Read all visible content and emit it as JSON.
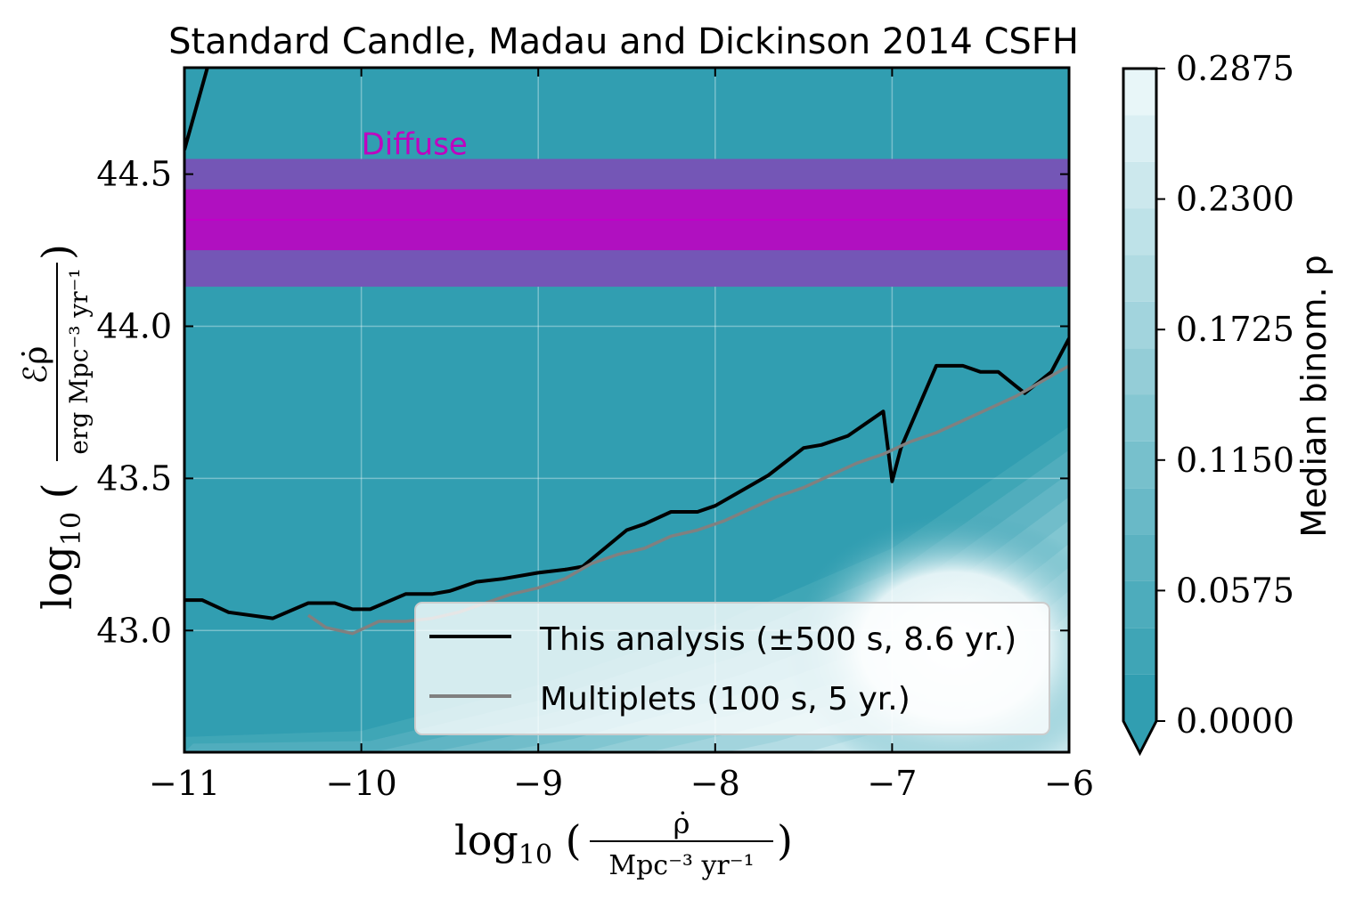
{
  "chart_data": {
    "type": "heatmap",
    "title": "Standard Candle, Madau and Dickinson 2014 CSFH",
    "xlabel": {
      "prefix": "log",
      "sub": "10",
      "numerator": "ρ̇",
      "denominator": "Mpc⁻³ yr⁻¹"
    },
    "ylabel": {
      "prefix": "log",
      "sub": "10",
      "numerator": "ℰρ̇",
      "denominator": "erg Mpc⁻³ yr⁻¹"
    },
    "xlim": [
      -11,
      -6
    ],
    "ylim": [
      42.6,
      44.85
    ],
    "xticks": [
      -11,
      -10,
      -9,
      -8,
      -7,
      -6
    ],
    "xtick_labels": [
      "−11",
      "−10",
      "−9",
      "−8",
      "−7",
      "−6"
    ],
    "yticks": [
      43.0,
      43.5,
      44.0,
      44.5
    ],
    "ytick_labels": [
      "43.0",
      "43.5",
      "44.0",
      "44.5"
    ],
    "grid": true,
    "colorbar": {
      "label": "Median binom. p",
      "ticks": [
        0.0,
        0.0575,
        0.115,
        0.1725,
        0.23,
        0.2875
      ],
      "tick_labels": [
        "0.0000",
        "0.0575",
        "0.1150",
        "0.1725",
        "0.2300",
        "0.2875"
      ],
      "extend": "min",
      "levels": 14,
      "color_low": "#319eb1",
      "color_high": "#e8f6f8"
    },
    "diffuse_band": {
      "label": "Diffuse",
      "center": 44.35,
      "inner": [
        44.25,
        44.45
      ],
      "outer": [
        44.13,
        44.55
      ],
      "color_inner": "#b010c0",
      "color_outer": "#7456b6",
      "label_color": "#c000c0"
    },
    "series": [
      {
        "name": "This analysis (±500 s, 8.6 yr.)",
        "color": "#000000",
        "x": [
          -11.0,
          -10.9,
          -10.75,
          -10.5,
          -10.3,
          -10.15,
          -10.05,
          -9.95,
          -9.75,
          -9.6,
          -9.5,
          -9.35,
          -9.2,
          -9.0,
          -8.85,
          -8.75,
          -8.5,
          -8.4,
          -8.25,
          -8.1,
          -8.0,
          -7.85,
          -7.7,
          -7.5,
          -7.4,
          -7.25,
          -7.05,
          -7.0,
          -6.95,
          -6.75,
          -6.6,
          -6.5,
          -6.4,
          -6.25,
          -6.1,
          -6.0
        ],
        "y": [
          43.1,
          43.1,
          43.06,
          43.04,
          43.09,
          43.09,
          43.07,
          43.07,
          43.12,
          43.12,
          43.13,
          43.16,
          43.17,
          43.19,
          43.2,
          43.21,
          43.33,
          43.35,
          43.39,
          43.39,
          43.41,
          43.46,
          43.51,
          43.6,
          43.61,
          43.64,
          43.72,
          43.49,
          43.6,
          43.87,
          43.87,
          43.85,
          43.85,
          43.78,
          43.85,
          43.96
        ]
      },
      {
        "name": "Multiplets (100 s, 5 yr.)",
        "color": "#808080",
        "x": [
          -10.3,
          -10.2,
          -10.05,
          -9.9,
          -9.75,
          -9.6,
          -9.45,
          -9.3,
          -9.15,
          -9.0,
          -8.85,
          -8.7,
          -8.55,
          -8.4,
          -8.25,
          -8.1,
          -7.95,
          -7.8,
          -7.65,
          -7.5,
          -7.35,
          -7.2,
          -7.05,
          -6.9,
          -6.75,
          -6.6,
          -6.45,
          -6.3,
          -6.15,
          -6.0
        ],
        "y": [
          43.05,
          43.01,
          42.99,
          43.03,
          43.03,
          43.04,
          43.06,
          43.09,
          43.12,
          43.14,
          43.17,
          43.22,
          43.25,
          43.27,
          43.31,
          43.33,
          43.36,
          43.4,
          43.44,
          43.47,
          43.51,
          43.55,
          43.58,
          43.62,
          43.65,
          43.69,
          43.73,
          43.77,
          43.82,
          43.87
        ]
      }
    ],
    "upper_line": {
      "color": "#000000",
      "x": [
        -11.0,
        -10.87
      ],
      "y": [
        44.58,
        44.85
      ]
    },
    "p_field": {
      "description_levels_shown_as": "median binomial p over the grid",
      "diagonal_low_threshold": [
        {
          "x": -11.0,
          "y": 42.63
        },
        {
          "x": -10.0,
          "y": 42.65
        },
        {
          "x": -9.0,
          "y": 42.8
        },
        {
          "x": -8.0,
          "y": 43.0
        },
        {
          "x": -7.0,
          "y": 43.25
        },
        {
          "x": -6.0,
          "y": 43.65
        }
      ]
    }
  }
}
